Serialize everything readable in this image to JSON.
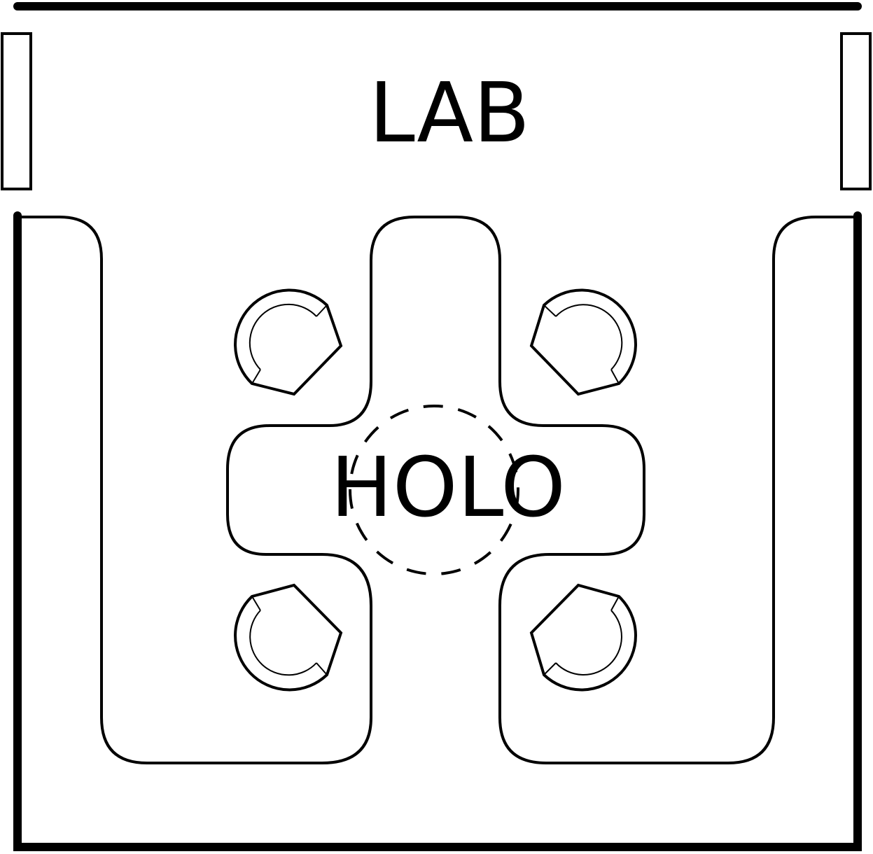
{
  "room_labels": {
    "lab": "LAB",
    "holo": "HOLO"
  },
  "icons": {
    "chair": "armchair-icon",
    "window": "window-icon",
    "projector": "hologram-projector-icon"
  },
  "colors": {
    "ink": "#000000",
    "background": "#ffffff"
  }
}
